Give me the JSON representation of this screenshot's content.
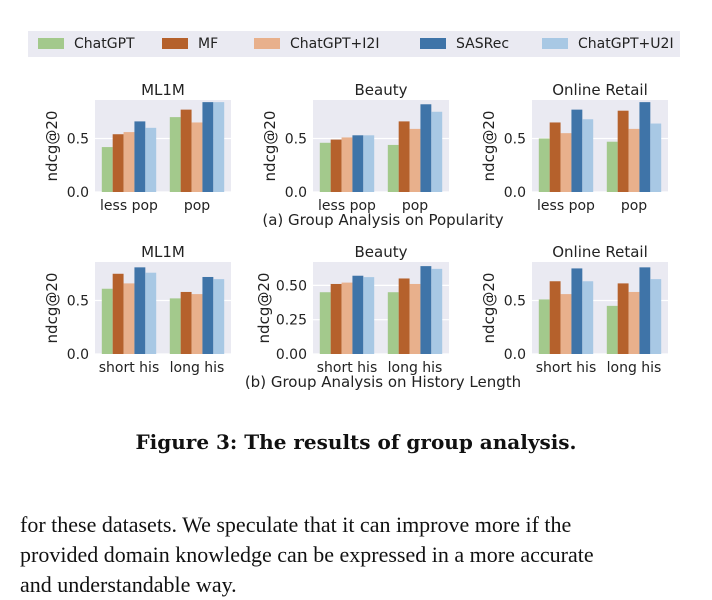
{
  "legend": [
    {
      "name": "ChatGPT",
      "color": "#a3c98c"
    },
    {
      "name": "MF",
      "color": "#b5612c"
    },
    {
      "name": "ChatGPT+I2I",
      "color": "#e8b08c"
    },
    {
      "name": "SASRec",
      "color": "#3f74a8"
    },
    {
      "name": "ChatGPT+U2I",
      "color": "#a8c8e4"
    }
  ],
  "chart_data": [
    {
      "type": "bar",
      "title": "ML1M",
      "ylabel": "ndcg@20",
      "ylim": [
        0,
        0.86
      ],
      "yticks": [
        "0.0",
        "0.5"
      ],
      "ytick_values": [
        0,
        0.5
      ],
      "categories": [
        "less pop",
        "pop"
      ],
      "series": [
        {
          "name": "ChatGPT",
          "values": [
            0.42,
            0.7
          ]
        },
        {
          "name": "MF",
          "values": [
            0.54,
            0.77
          ]
        },
        {
          "name": "ChatGPT+I2I",
          "values": [
            0.56,
            0.65
          ]
        },
        {
          "name": "SASRec",
          "values": [
            0.66,
            0.84
          ]
        },
        {
          "name": "ChatGPT+U2I",
          "values": [
            0.6,
            0.84
          ]
        }
      ]
    },
    {
      "type": "bar",
      "title": "Beauty",
      "ylabel": "ndcg@20",
      "ylim": [
        0,
        0.86
      ],
      "yticks": [
        "0.0",
        "0.5"
      ],
      "ytick_values": [
        0,
        0.5
      ],
      "categories": [
        "less pop",
        "pop"
      ],
      "series": [
        {
          "name": "ChatGPT",
          "values": [
            0.46,
            0.44
          ]
        },
        {
          "name": "MF",
          "values": [
            0.49,
            0.66
          ]
        },
        {
          "name": "ChatGPT+I2I",
          "values": [
            0.51,
            0.59
          ]
        },
        {
          "name": "SASRec",
          "values": [
            0.53,
            0.82
          ]
        },
        {
          "name": "ChatGPT+U2I",
          "values": [
            0.53,
            0.75
          ]
        }
      ]
    },
    {
      "type": "bar",
      "title": "Online Retail",
      "ylabel": "ndcg@20",
      "ylim": [
        0,
        0.86
      ],
      "yticks": [
        "0.0",
        "0.5"
      ],
      "ytick_values": [
        0,
        0.5
      ],
      "categories": [
        "less pop",
        "pop"
      ],
      "series": [
        {
          "name": "ChatGPT",
          "values": [
            0.5,
            0.47
          ]
        },
        {
          "name": "MF",
          "values": [
            0.65,
            0.76
          ]
        },
        {
          "name": "ChatGPT+I2I",
          "values": [
            0.55,
            0.59
          ]
        },
        {
          "name": "SASRec",
          "values": [
            0.77,
            0.84
          ]
        },
        {
          "name": "ChatGPT+U2I",
          "values": [
            0.68,
            0.64
          ]
        }
      ]
    },
    {
      "type": "bar",
      "title": "ML1M",
      "ylabel": "ndcg@20",
      "ylim": [
        0,
        0.86
      ],
      "yticks": [
        "0.0",
        "0.5"
      ],
      "ytick_values": [
        0,
        0.5
      ],
      "categories": [
        "short his",
        "long his"
      ],
      "series": [
        {
          "name": "ChatGPT",
          "values": [
            0.61,
            0.52
          ]
        },
        {
          "name": "MF",
          "values": [
            0.75,
            0.58
          ]
        },
        {
          "name": "ChatGPT+I2I",
          "values": [
            0.66,
            0.56
          ]
        },
        {
          "name": "SASRec",
          "values": [
            0.81,
            0.72
          ]
        },
        {
          "name": "ChatGPT+U2I",
          "values": [
            0.76,
            0.7
          ]
        }
      ]
    },
    {
      "type": "bar",
      "title": "Beauty",
      "ylabel": "ndcg@20",
      "ylim": [
        0,
        0.67
      ],
      "yticks": [
        "0.00",
        "0.25",
        "0.50"
      ],
      "ytick_values": [
        0,
        0.25,
        0.5
      ],
      "categories": [
        "short his",
        "long his"
      ],
      "series": [
        {
          "name": "ChatGPT",
          "values": [
            0.45,
            0.45
          ]
        },
        {
          "name": "MF",
          "values": [
            0.51,
            0.55
          ]
        },
        {
          "name": "ChatGPT+I2I",
          "values": [
            0.52,
            0.51
          ]
        },
        {
          "name": "SASRec",
          "values": [
            0.57,
            0.64
          ]
        },
        {
          "name": "ChatGPT+U2I",
          "values": [
            0.56,
            0.62
          ]
        }
      ]
    },
    {
      "type": "bar",
      "title": "Online Retail",
      "ylabel": "ndcg@20",
      "ylim": [
        0,
        0.86
      ],
      "yticks": [
        "0.0",
        "0.5"
      ],
      "ytick_values": [
        0,
        0.5
      ],
      "categories": [
        "short his",
        "long his"
      ],
      "series": [
        {
          "name": "ChatGPT",
          "values": [
            0.51,
            0.45
          ]
        },
        {
          "name": "MF",
          "values": [
            0.68,
            0.66
          ]
        },
        {
          "name": "ChatGPT+I2I",
          "values": [
            0.56,
            0.58
          ]
        },
        {
          "name": "SASRec",
          "values": [
            0.8,
            0.81
          ]
        },
        {
          "name": "ChatGPT+U2I",
          "values": [
            0.68,
            0.7
          ]
        }
      ]
    }
  ],
  "subcaptions": [
    "(a) Group Analysis on Popularity",
    "(b) Group Analysis on History Length"
  ],
  "caption": "Figure 3: The results of group analysis.",
  "paragraph": [
    "for these datasets. We speculate that it can improve more if the",
    "provided domain knowledge can be expressed in a more accurate",
    "and understandable way."
  ]
}
